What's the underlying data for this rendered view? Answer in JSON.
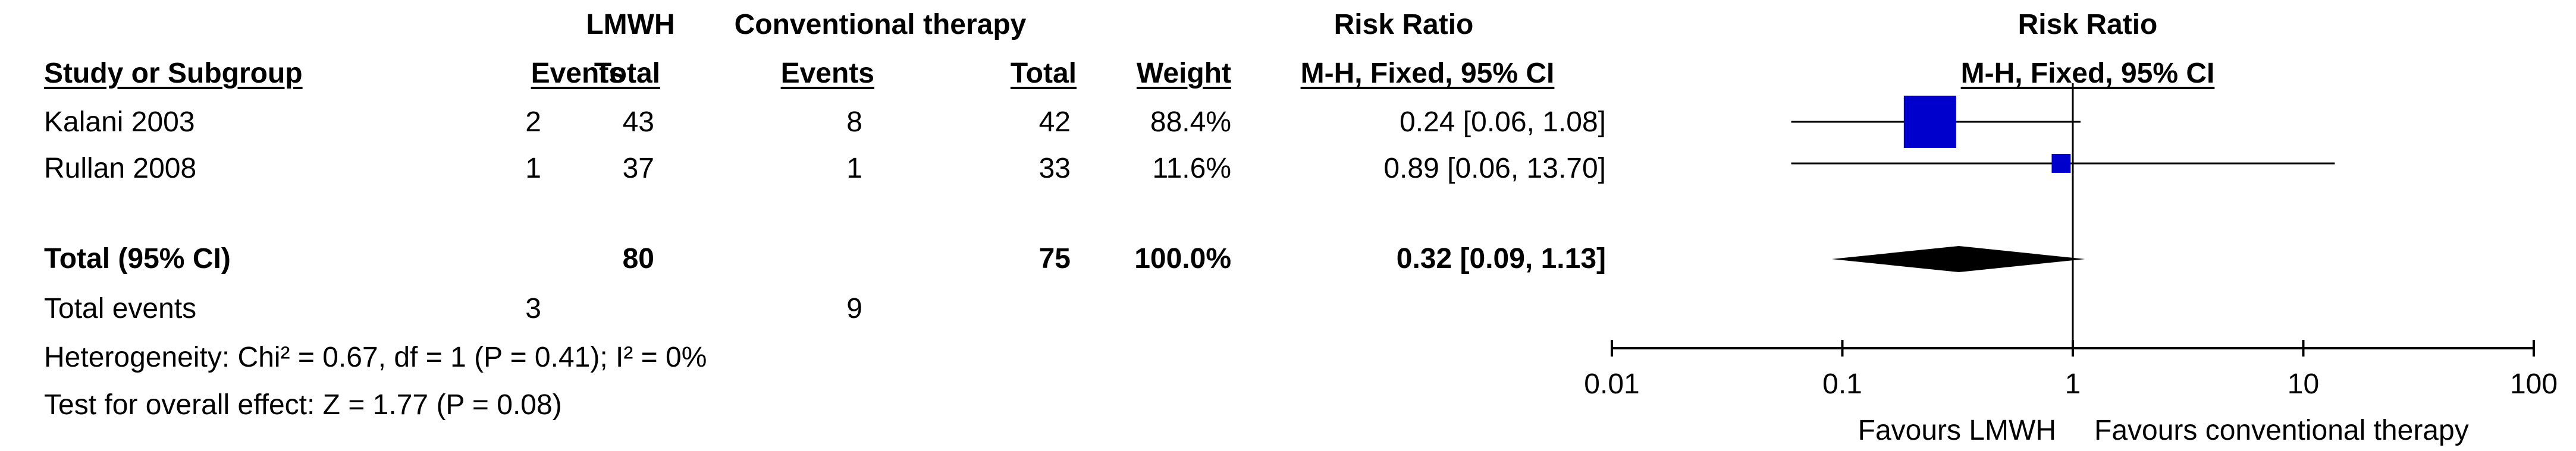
{
  "header": {
    "group1": "LMWH",
    "group2": "Conventional therapy",
    "rr_left": "Risk Ratio",
    "rr_right": "Risk Ratio",
    "study": "Study or Subgroup",
    "events1": "Events",
    "total1": "Total",
    "events2": "Events",
    "total2": "Total",
    "weight": "Weight",
    "method_left": "M-H, Fixed, 95% CI",
    "method_right": "M-H, Fixed, 95% CI"
  },
  "studies": [
    {
      "name": "Kalani 2003",
      "events1": "2",
      "total1": "43",
      "events2": "8",
      "total2": "42",
      "weight": "88.4%",
      "ci": "0.24 [0.06, 1.08]"
    },
    {
      "name": "Rullan 2008",
      "events1": "1",
      "total1": "37",
      "events2": "1",
      "total2": "33",
      "weight": "11.6%",
      "ci": "0.89 [0.06, 13.70]"
    }
  ],
  "total": {
    "label": "Total (95% CI)",
    "total1": "80",
    "total2": "75",
    "weight": "100.0%",
    "ci": "0.32 [0.09, 1.13]"
  },
  "total_events": {
    "label": "Total events",
    "events1": "3",
    "events2": "9"
  },
  "heterogeneity": "Heterogeneity: Chi² = 0.67, df = 1 (P = 0.41); I² = 0%",
  "overall_effect": "Test for overall effect: Z = 1.77 (P = 0.08)",
  "favours": {
    "left": "Favours LMWH",
    "right": "Favours conventional therapy"
  },
  "colors": {
    "study_marker": "#0000cc",
    "diamond": "#000000",
    "line": "#000000"
  },
  "chart_data": {
    "type": "forest",
    "scale": "log",
    "xlim": [
      0.01,
      100
    ],
    "ticks": [
      0.01,
      0.1,
      1,
      10,
      100
    ],
    "tick_labels": [
      "0.01",
      "0.1",
      "1",
      "10",
      "100"
    ],
    "reference_line": 1,
    "studies": [
      {
        "name": "Kalani 2003",
        "rr": 0.24,
        "lower": 0.06,
        "upper": 1.08,
        "weight": 88.4
      },
      {
        "name": "Rullan 2008",
        "rr": 0.89,
        "lower": 0.06,
        "upper": 13.7,
        "weight": 11.6
      }
    ],
    "pooled": {
      "rr": 0.32,
      "lower": 0.09,
      "upper": 1.13
    }
  }
}
